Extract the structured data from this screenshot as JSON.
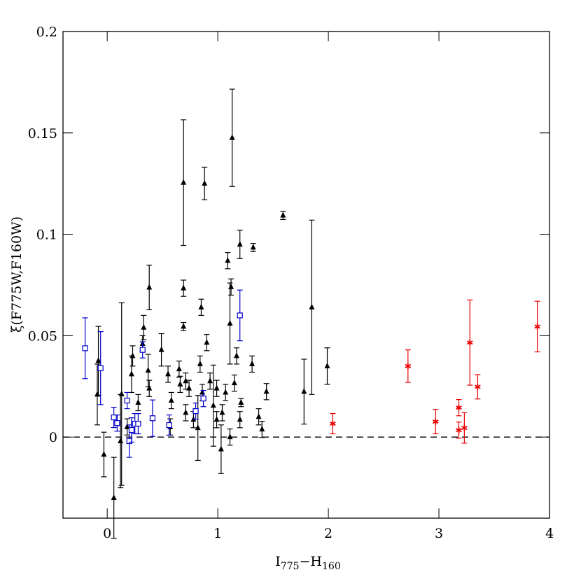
{
  "chart_data": {
    "type": "scatter",
    "x_label": [
      "I",
      "775",
      "−H",
      "160"
    ],
    "y_label": "ξ(F775W,F160W)",
    "xlim": [
      -0.4,
      4
    ],
    "ylim": [
      -0.04,
      0.2
    ],
    "xticks": [
      0,
      1,
      2,
      3,
      4
    ],
    "yticks": [
      0,
      0.05,
      0.1,
      0.15,
      0.2
    ],
    "hline": 0,
    "series": [
      {
        "color": "#000000",
        "marker": "triangle",
        "x": [
          -0.08,
          -0.09,
          -0.03,
          0.06,
          0.12,
          0.13,
          0.18,
          0.22,
          0.23,
          0.28,
          0.32,
          0.33,
          0.37,
          0.38,
          0.38,
          0.49,
          0.55,
          0.58,
          0.65,
          0.69,
          0.69,
          0.69,
          0.66,
          0.71,
          0.74,
          0.78,
          0.82,
          0.84,
          0.85,
          0.88,
          0.9,
          0.93,
          0.96,
          0.99,
          1.03,
          1.04,
          1.07,
          1.09,
          1.11,
          1.12,
          1.13,
          1.15,
          1.17,
          1.2,
          1.21,
          1.32,
          1.2,
          1.31,
          1.37,
          1.4,
          1.44,
          1.59,
          1.78,
          1.85,
          1.99,
          1.11,
          0.86,
          0.99,
          0.71,
          0.57
        ],
        "values": [
          0.0376,
          0.021,
          -0.0086,
          -0.03,
          -0.002,
          0.0212,
          0.005,
          0.031,
          0.04,
          0.017,
          0.046,
          0.054,
          0.0328,
          0.0738,
          0.024,
          0.043,
          0.031,
          0.018,
          0.0335,
          0.1255,
          0.0734,
          0.0545,
          0.026,
          0.012,
          0.024,
          0.0086,
          0.0045,
          0.036,
          0.064,
          0.125,
          0.0466,
          0.0276,
          0.0155,
          0.024,
          -0.006,
          0.012,
          0.022,
          0.087,
          0.056,
          0.074,
          0.1476,
          0.0266,
          0.04,
          0.095,
          0.017,
          0.0935,
          0.0086,
          0.036,
          0.01,
          0.0038,
          0.0224,
          0.1093,
          0.0224,
          0.064,
          0.035,
          0.0,
          0.022,
          0.0086,
          0.0276,
          0.005
        ],
        "errors": [
          0.017,
          0.015,
          0.011,
          0.02,
          0.023,
          0.045,
          0.004,
          0.009,
          0.005,
          0.004,
          0.004,
          0.006,
          0.008,
          0.011,
          0.004,
          0.008,
          0.004,
          0.004,
          0.004,
          0.031,
          0.004,
          0.002,
          0.004,
          0.004,
          0.004,
          0.004,
          0.016,
          0.004,
          0.004,
          0.008,
          0.004,
          0.004,
          0.02,
          0.004,
          0.012,
          0.004,
          0.004,
          0.004,
          0.02,
          0.004,
          0.024,
          0.004,
          0.004,
          0.007,
          0.002,
          0.002,
          0.004,
          0.004,
          0.004,
          0.004,
          0.004,
          0.002,
          0.016,
          0.043,
          0.009,
          0.004,
          0.004,
          0.004,
          0.004,
          0.004
        ]
      },
      {
        "color": "#0000cc",
        "marker": "square",
        "x": [
          -0.2,
          -0.06,
          0.06,
          0.09,
          0.18,
          0.2,
          0.22,
          0.25,
          0.28,
          0.32,
          0.41,
          0.56,
          0.8,
          0.87,
          1.2
        ],
        "values": [
          0.0438,
          0.034,
          0.0097,
          0.0069,
          0.018,
          -0.002,
          0.0035,
          0.0066,
          0.0066,
          0.043,
          0.0093,
          0.0059,
          0.0128,
          0.019,
          0.06
        ],
        "errors": [
          0.015,
          0.018,
          0.005,
          0.004,
          0.004,
          0.008,
          0.006,
          0.005,
          0.005,
          0.004,
          0.009,
          0.005,
          0.004,
          0.004,
          0.0125
        ]
      },
      {
        "color": "#ee0000",
        "marker": "star",
        "x": [
          2.04,
          2.72,
          2.97,
          3.18,
          3.18,
          3.23,
          3.28,
          3.35,
          3.89
        ],
        "values": [
          0.0066,
          0.035,
          0.0076,
          0.0145,
          0.0034,
          0.0045,
          0.0466,
          0.0248,
          0.0545
        ],
        "errors": [
          0.005,
          0.008,
          0.006,
          0.004,
          0.004,
          0.0075,
          0.021,
          0.006,
          0.0125
        ]
      }
    ]
  }
}
